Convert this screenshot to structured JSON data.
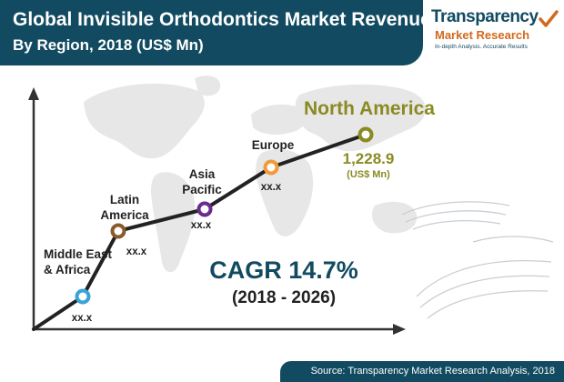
{
  "header": {
    "title_line1": "Global Invisible Orthodontics Market Revenue",
    "title_line2": "By Region, 2018 (US$ Mn)"
  },
  "logo": {
    "name_line1": "Transparency",
    "name_line2": "Market Research",
    "tagline": "In-depth Analysis. Accurate Results"
  },
  "colors": {
    "banner": "#124b61",
    "north_america": "#8b8a22",
    "line": "#222222",
    "marker_middle_east_africa": "#3aa4d9",
    "marker_latin_america": "#8b5a2b",
    "marker_asia_pacific": "#6a2c8c",
    "marker_europe": "#f29a3a",
    "marker_north_america": "#8b8a22"
  },
  "chart_data": {
    "type": "line",
    "categories": [
      "Middle East & Africa",
      "Latin America",
      "Asia Pacific",
      "Europe",
      "North America"
    ],
    "category_labels": [
      "Middle East\n& Africa",
      "Latin\nAmerica",
      "Asia\nPacific",
      "Europe",
      "North America"
    ],
    "value_labels": [
      "xx.x",
      "xx.x",
      "xx.x",
      "xx.x",
      "1,228.9"
    ],
    "known_value": {
      "category": "North America",
      "value": 1228.9,
      "unit": "(US$ Mn)"
    },
    "annotations": {
      "cagr": "CAGR 14.7%",
      "period": "(2018 - 2026)"
    }
  },
  "footer": {
    "source": "Source: Transparency Market Research Analysis, 2018"
  }
}
